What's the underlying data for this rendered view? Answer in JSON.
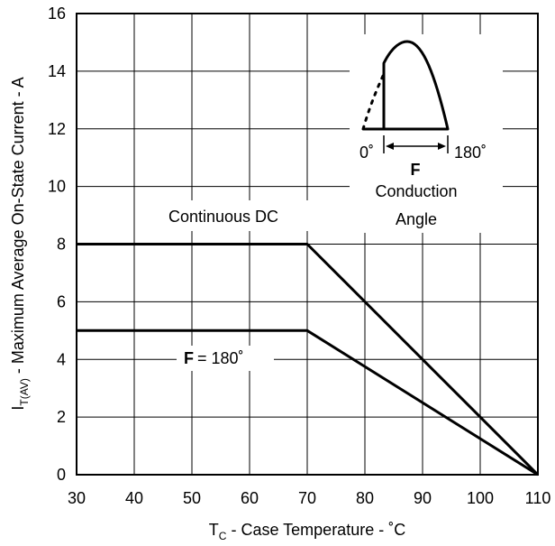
{
  "chart_data": {
    "type": "line",
    "xlabel": {
      "main": "T",
      "sub": "C",
      "rest": " - Case Temperature - ˚C"
    },
    "ylabel": {
      "main": "I",
      "sub": "T(AV)",
      "rest": " - Maximum Average On-State Current - A"
    },
    "xlim": [
      30,
      110
    ],
    "ylim": [
      0,
      16
    ],
    "xticks": [
      30,
      40,
      50,
      60,
      70,
      80,
      90,
      100,
      110
    ],
    "yticks": [
      0,
      2,
      4,
      6,
      8,
      10,
      12,
      14,
      16
    ],
    "grid": true,
    "series": [
      {
        "name": "Continuous DC",
        "x": [
          30,
          70,
          110
        ],
        "y": [
          8,
          8,
          0
        ]
      },
      {
        "name": "= 180˚",
        "name_symbol": "F",
        "x": [
          30,
          70,
          110
        ],
        "y": [
          5,
          5,
          0
        ]
      }
    ],
    "inset": {
      "left_label": "0˚",
      "right_label": "180˚",
      "symbol": "F",
      "caption_line1": "Conduction",
      "caption_line2": "Angle"
    }
  }
}
